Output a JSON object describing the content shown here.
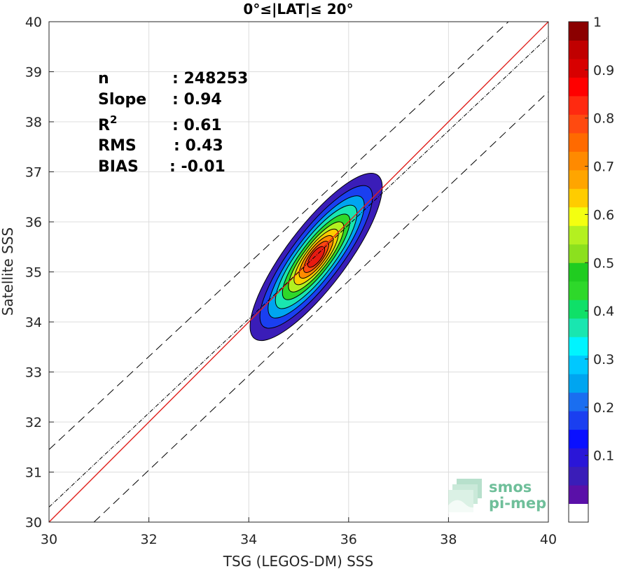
{
  "chart_data": {
    "type": "contour-density-scatter",
    "title": "0°≤|LAT|≤ 20°",
    "xlabel": "TSG (LEGOS-DM) SSS",
    "ylabel": "Satellite SSS",
    "xlim": [
      30,
      40
    ],
    "ylim": [
      30,
      40
    ],
    "xticks": [
      30,
      32,
      34,
      36,
      38,
      40
    ],
    "yticks": [
      30,
      31,
      32,
      33,
      34,
      35,
      36,
      37,
      38,
      39,
      40
    ],
    "grid": true,
    "stats": [
      {
        "label": "n",
        "value": ": 248253"
      },
      {
        "label": "Slope",
        "value": ": 0.94"
      },
      {
        "label": "R",
        "sup": "2",
        "value": ": 0.61"
      },
      {
        "label": "RMS",
        "value": ": 0.43"
      },
      {
        "label": "BIAS",
        "value": ": -0.01"
      }
    ],
    "reference_lines": [
      {
        "name": "1:1",
        "color": "#e0201c",
        "style": "solid",
        "from": [
          30,
          30
        ],
        "to": [
          40,
          40
        ]
      },
      {
        "name": "fit",
        "color": "#000000",
        "style": "dash-dot",
        "from": [
          30,
          30.3
        ],
        "to": [
          40,
          39.7
        ]
      },
      {
        "name": "upper",
        "color": "#000000",
        "style": "dashed",
        "from": [
          30,
          31.45
        ],
        "to": [
          39.2,
          40
        ]
      },
      {
        "name": "lower",
        "color": "#000000",
        "style": "dashed",
        "from": [
          30.9,
          30
        ],
        "to": [
          40,
          38.6
        ]
      }
    ],
    "density": {
      "center": [
        35.35,
        35.3
      ],
      "angle_deg": 53,
      "levels": [
        0.05,
        0.1,
        0.15,
        0.2,
        0.25,
        0.3,
        0.35,
        0.4,
        0.45,
        0.5,
        0.55,
        0.6,
        0.65,
        0.7,
        0.75,
        0.8,
        0.85,
        0.9
      ],
      "contours": [
        {
          "level": 0.05,
          "a": 2.05,
          "b": 0.6,
          "color": "#3a1db8"
        },
        {
          "level": 0.2,
          "a": 1.75,
          "b": 0.5,
          "color": "#1a3ff0"
        },
        {
          "level": 0.3,
          "a": 1.5,
          "b": 0.42,
          "color": "#00a5f0"
        },
        {
          "level": 0.4,
          "a": 1.27,
          "b": 0.36,
          "color": "#19e6b0"
        },
        {
          "level": 0.5,
          "a": 1.05,
          "b": 0.3,
          "color": "#2ed82a"
        },
        {
          "level": 0.6,
          "a": 0.86,
          "b": 0.25,
          "color": "#b4f020"
        },
        {
          "level": 0.7,
          "a": 0.68,
          "b": 0.21,
          "color": "#ffcc00"
        },
        {
          "level": 0.75,
          "a": 0.52,
          "b": 0.17,
          "color": "#ff8a00"
        },
        {
          "level": 0.8,
          "a": 0.38,
          "b": 0.13,
          "color": "#ff4a10"
        },
        {
          "level": 0.85,
          "a": 0.25,
          "b": 0.1,
          "color": "#e81a10"
        }
      ]
    },
    "colorbar": {
      "ticks": [
        0.1,
        0.2,
        0.3,
        0.4,
        0.5,
        0.6,
        0.7,
        0.8,
        0.9,
        1
      ],
      "tick_labels": [
        "0.1",
        "0.2",
        "0.3",
        "0.4",
        "0.5",
        "0.6",
        "0.7",
        "0.8",
        "0.9",
        "1"
      ],
      "colors": [
        "#ffffff",
        "#5a10a8",
        "#3a1db8",
        "#2a16d8",
        "#0a10ff",
        "#1a3ff0",
        "#1a6ef0",
        "#00a5f0",
        "#00c8ff",
        "#00f4ff",
        "#19e6b0",
        "#0fe068",
        "#2ed82a",
        "#20cc20",
        "#8ce01e",
        "#b4f020",
        "#f4ff10",
        "#ffcc00",
        "#ffa500",
        "#ff8a00",
        "#ff6a00",
        "#ff4a10",
        "#ff2a10",
        "#ff0000",
        "#d80000",
        "#c00000",
        "#8b0000"
      ]
    },
    "watermark": [
      "smos",
      "pi-mep"
    ]
  }
}
